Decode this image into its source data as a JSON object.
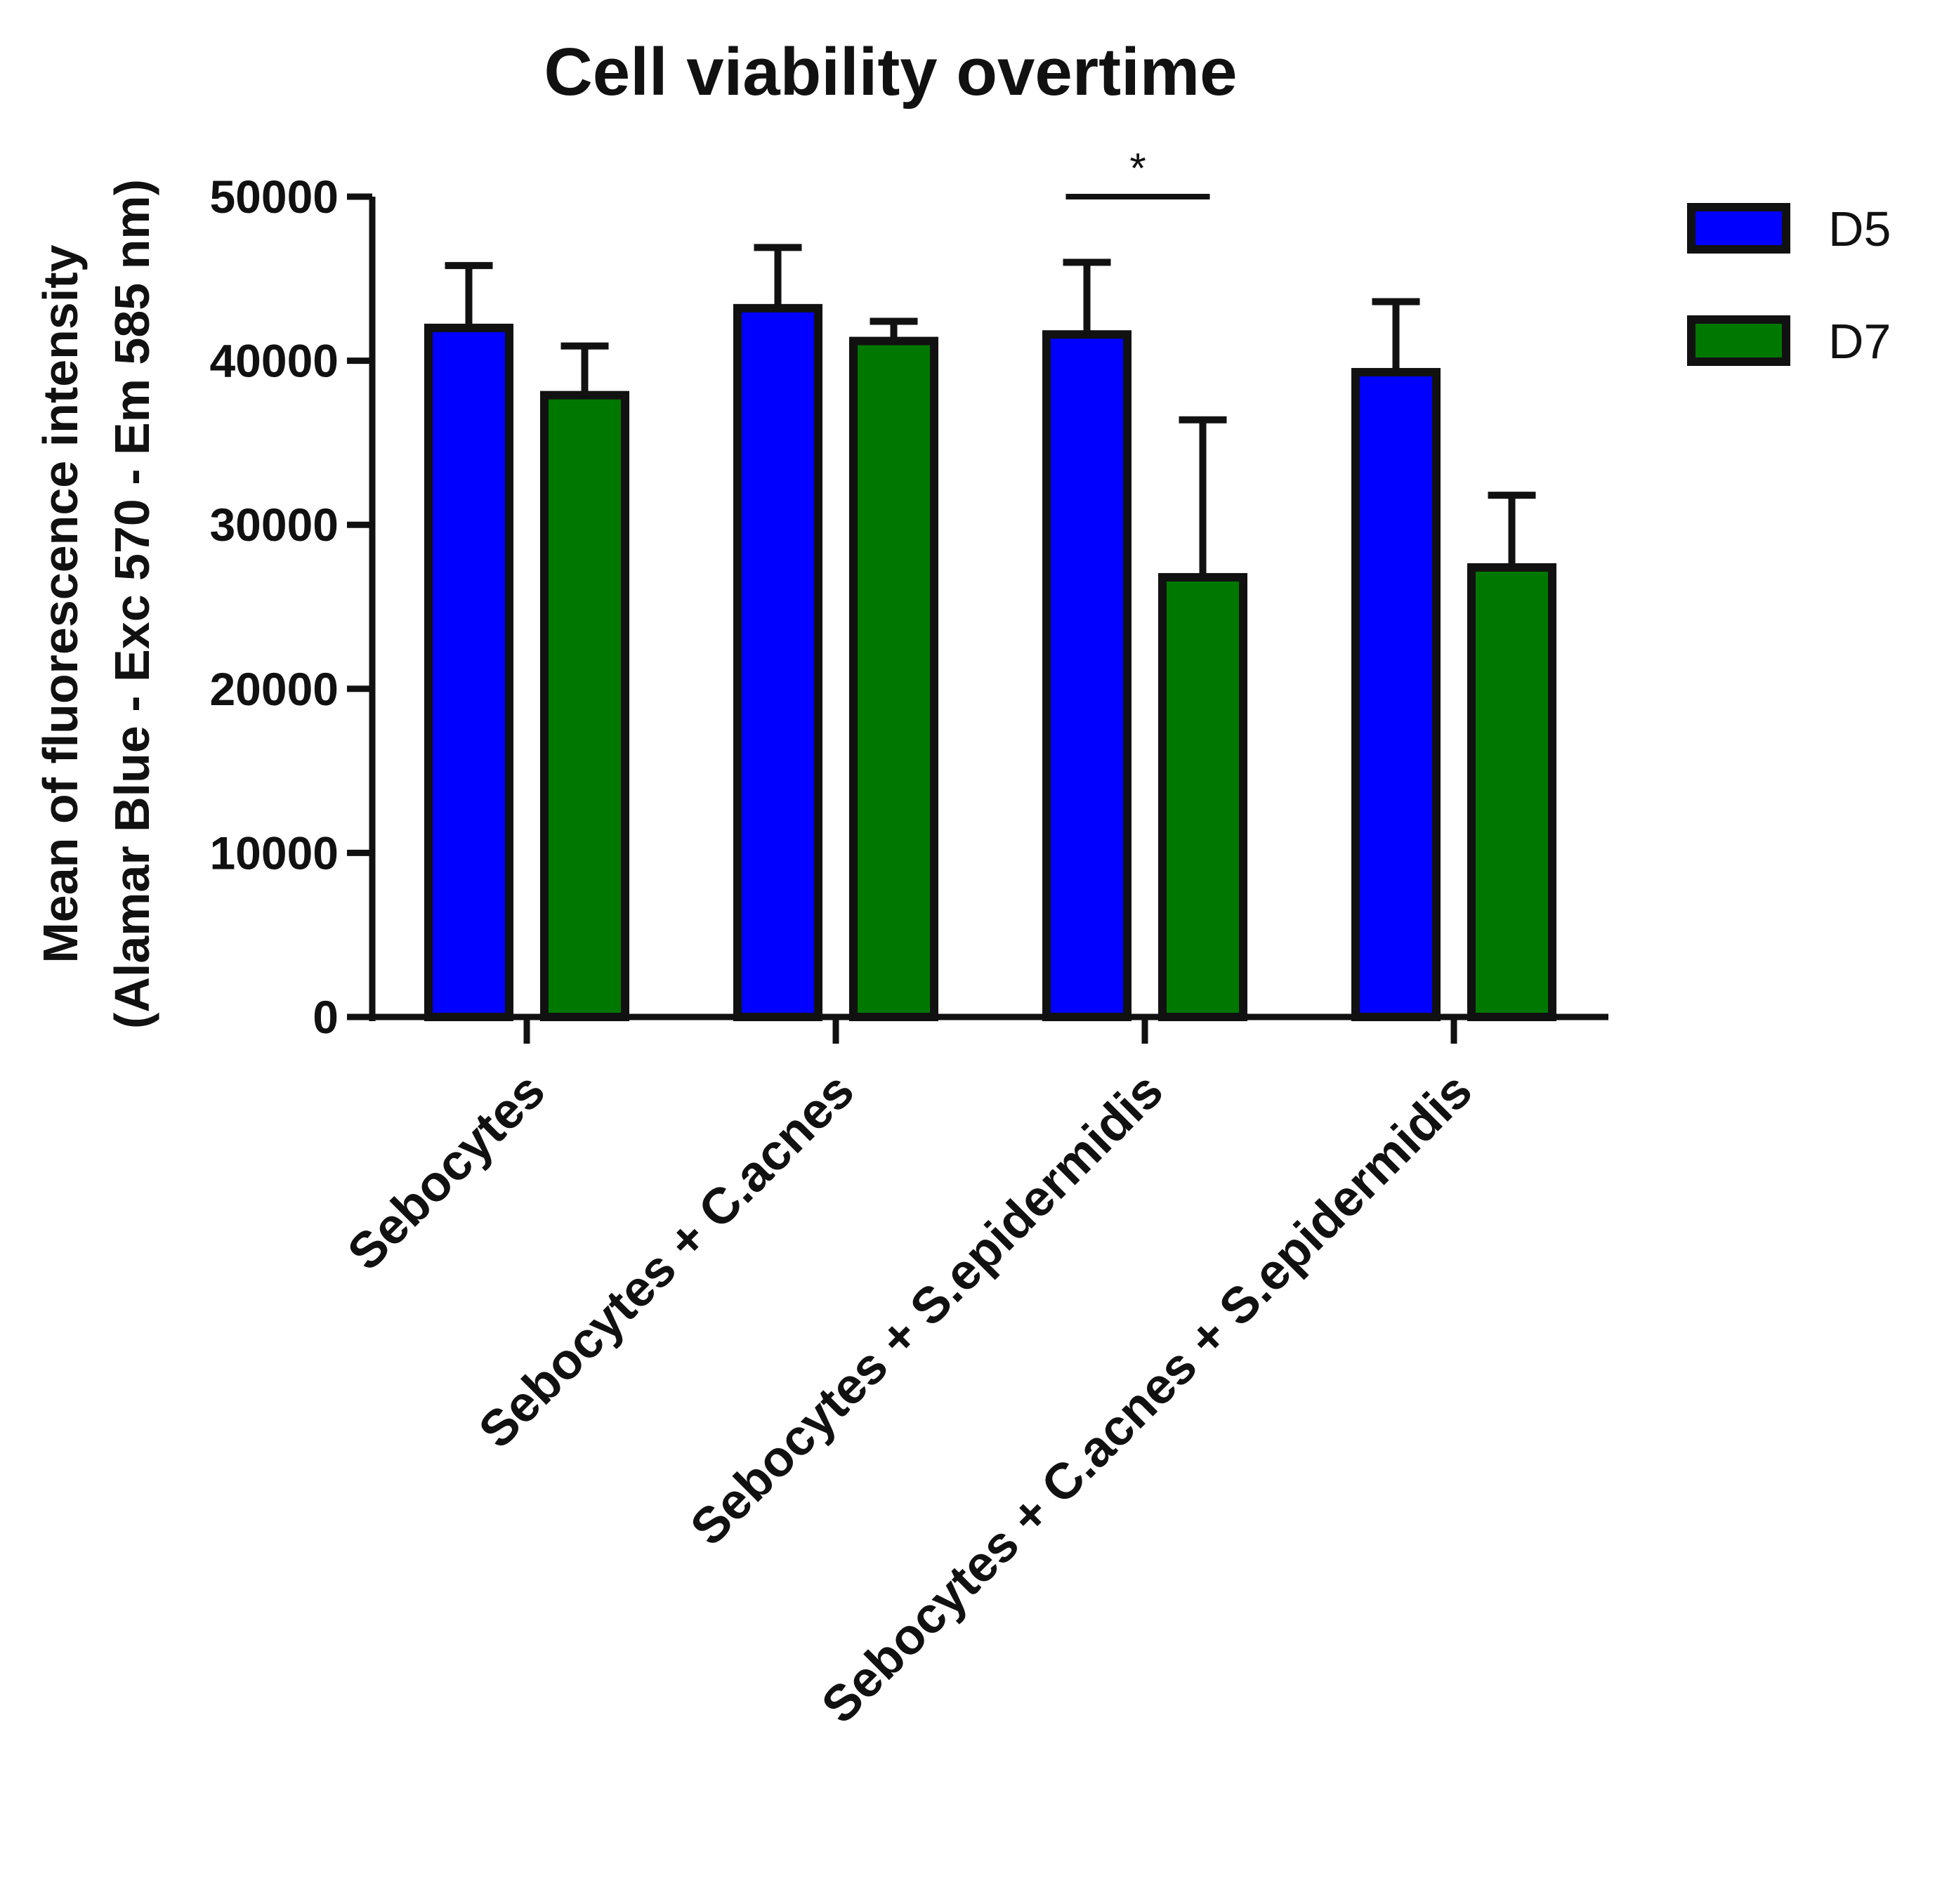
{
  "chart_data": {
    "type": "bar",
    "title": "Cell viability overtime",
    "ylabel_lines": [
      "Mean of fluorescence intensity",
      "(Alamar Blue - Exc 570 - Em 585 nm)"
    ],
    "xlabel": "",
    "categories": [
      "Sebocytes",
      "Sebocytes + C.acnes",
      "Sebocytes + S.epidermidis",
      "Sebocytes + C.acnes + S.epidermidis"
    ],
    "series": [
      {
        "name": "D5",
        "color": "#0000ff",
        "values": [
          42000,
          43200,
          41600,
          39300
        ],
        "errors": [
          3800,
          3700,
          4400,
          4300
        ]
      },
      {
        "name": "D7",
        "color": "#007800",
        "values": [
          37900,
          41200,
          26800,
          27400
        ],
        "errors": [
          3000,
          1200,
          9600,
          4400
        ]
      }
    ],
    "ylim": [
      0,
      50000
    ],
    "yticks": [
      0,
      10000,
      20000,
      30000,
      40000,
      50000
    ],
    "ytick_labels": [
      "0",
      "10000",
      "20000",
      "30000",
      "40000",
      "50000"
    ],
    "grid": false,
    "legend_position": "top-right",
    "significance": [
      {
        "category_index": 2,
        "label": "*"
      }
    ]
  }
}
